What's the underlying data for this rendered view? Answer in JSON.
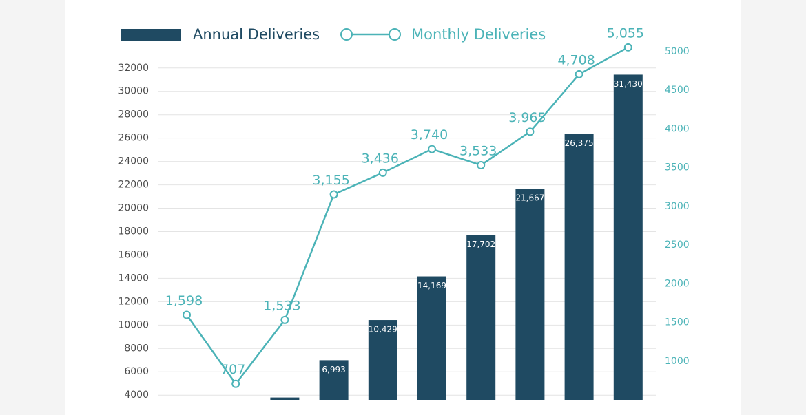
{
  "chart_data": {
    "type": "bar-line",
    "categories": [
      null,
      null,
      null,
      null,
      null,
      null,
      null,
      null,
      null,
      null
    ],
    "series": [
      {
        "name": "Annual Deliveries",
        "type": "bar",
        "color": "#1f4a62",
        "axis": "y",
        "values": [
          null,
          null,
          3800,
          6993,
          10429,
          14169,
          17702,
          21667,
          26375,
          31430
        ],
        "value_labels": [
          null,
          null,
          null,
          "6,993",
          "10,429",
          "14,169",
          "17,702",
          "21,667",
          "26,375",
          "31,430"
        ]
      },
      {
        "name": "Monthly Deliveries",
        "type": "line",
        "color": "#4bb3b7",
        "axis": "y2",
        "values": [
          1598,
          707,
          1533,
          3155,
          3436,
          3740,
          3533,
          3965,
          4708,
          5055
        ],
        "value_labels": [
          "1,598",
          "707",
          "1,533",
          "3,155",
          "3,436",
          "3,740",
          "3,533",
          "3,965",
          "4,708",
          "5,055"
        ]
      }
    ],
    "ylim": [
      3600,
      33400
    ],
    "yticks": [
      4000,
      6000,
      8000,
      10000,
      12000,
      14000,
      16000,
      18000,
      20000,
      22000,
      24000,
      26000,
      28000,
      30000,
      32000
    ],
    "y2lim": [
      500,
      5000
    ],
    "y2ticks": [
      1000,
      1500,
      2000,
      2500,
      3000,
      3500,
      4000,
      4500,
      5000
    ],
    "grid": true,
    "legend": "top"
  }
}
